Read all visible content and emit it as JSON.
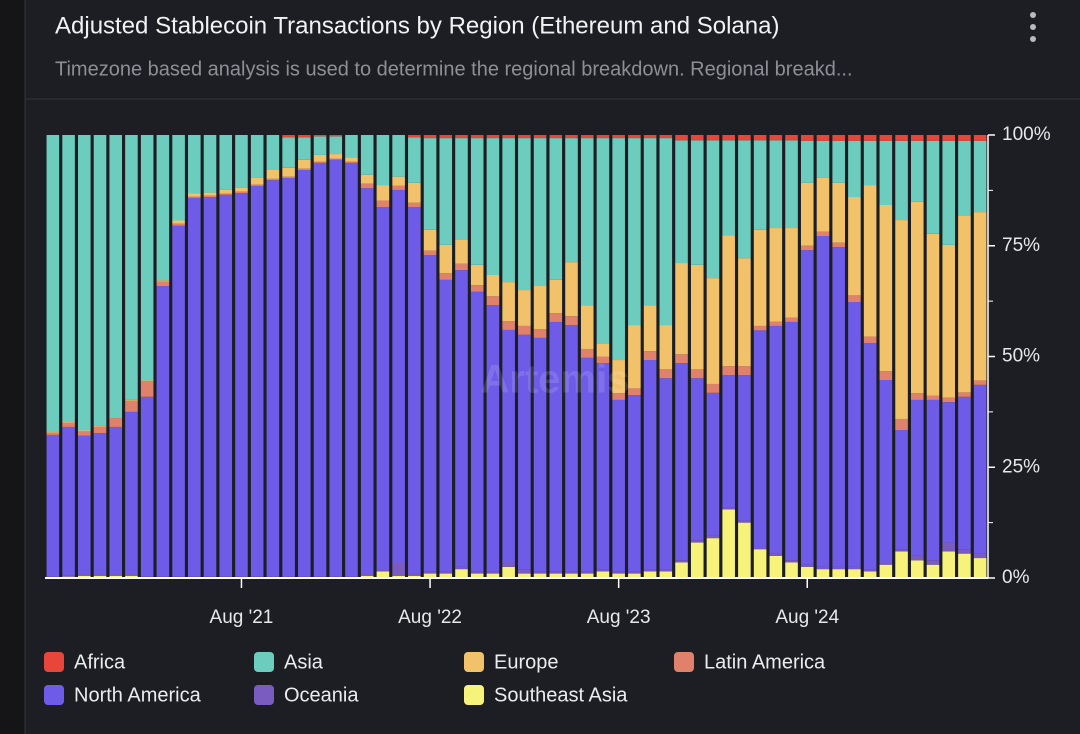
{
  "chart_data": {
    "type": "stacked_bar_percent",
    "title": "Adjusted Stablecoin Transactions by Region (Ethereum and Solana)",
    "subtitle": "Timezone based analysis is used to determine the regional breakdown. Regional breakd...",
    "watermark": "Artemis",
    "categories": [
      null,
      null,
      null,
      null,
      null,
      null,
      null,
      null,
      null,
      null,
      null,
      null,
      "Aug '21",
      null,
      null,
      null,
      null,
      null,
      null,
      null,
      null,
      null,
      null,
      null,
      "Aug '22",
      null,
      null,
      null,
      null,
      null,
      null,
      null,
      null,
      null,
      null,
      null,
      "Aug '23",
      null,
      null,
      null,
      null,
      null,
      null,
      null,
      null,
      null,
      null,
      null,
      "Aug '24",
      null,
      null,
      null,
      null,
      null,
      null,
      null,
      null,
      null,
      null,
      null
    ],
    "ylim": [
      0,
      100
    ],
    "yticks": [
      {
        "value": 0,
        "label": "0%"
      },
      {
        "value": 25,
        "label": "25%"
      },
      {
        "value": 50,
        "label": "50%"
      },
      {
        "value": 75,
        "label": "75%"
      },
      {
        "value": 100,
        "label": "100%"
      }
    ],
    "grid": false,
    "legend": "bottom",
    "series": [
      {
        "name": "Africa",
        "color": "#e8463a",
        "values": [
          0,
          0,
          0,
          0,
          0,
          0,
          0,
          0,
          0,
          0,
          0,
          0,
          0,
          0,
          0,
          0.5,
          0.5,
          0.3,
          0.3,
          0,
          0,
          0,
          0,
          0.5,
          0.7,
          0.7,
          0.7,
          0.7,
          0.7,
          0.7,
          0.7,
          0.7,
          0.7,
          0.7,
          0.7,
          0.7,
          0.7,
          0.7,
          0.7,
          0.7,
          1.2,
          1.2,
          1.2,
          1.2,
          1.2,
          1.2,
          1.2,
          1.2,
          1.3,
          1.3,
          1.3,
          1.3,
          1.3,
          1.3,
          1.3,
          1.3,
          1.3,
          1.3,
          1.3,
          1.3
        ]
      },
      {
        "name": "Asia",
        "color": "#6ccdbf",
        "values": [
          66.9,
          64.6,
          66.7,
          65.6,
          63.7,
          59.8,
          55.4,
          32.8,
          19.3,
          13.2,
          13.0,
          12.4,
          11.8,
          9.7,
          7.9,
          6.9,
          5.1,
          4.2,
          4.0,
          5.0,
          9.0,
          11.3,
          9.4,
          10.3,
          20.7,
          24.1,
          23.0,
          28.6,
          30.9,
          32.5,
          34.3,
          33.2,
          32.0,
          28.0,
          37.7,
          46.3,
          50.1,
          42.2,
          37.7,
          42.2,
          27.7,
          28.1,
          31.1,
          21.4,
          26.6,
          20.2,
          19.8,
          19.8,
          9.5,
          8.4,
          9.5,
          12.7,
          10.0,
          14.5,
          17.9,
          13.8,
          21.0,
          23.5,
          16.8,
          16.1
        ]
      },
      {
        "name": "Europe",
        "color": "#f2c26b",
        "values": [
          0.3,
          0.3,
          0.2,
          0.2,
          0.2,
          0.2,
          0.2,
          0.3,
          0.7,
          0.7,
          0.7,
          0.8,
          1,
          1.5,
          2,
          2,
          2,
          1.5,
          1,
          1,
          2,
          3.5,
          2,
          4.5,
          4.7,
          6.4,
          5.3,
          4.6,
          4.8,
          8.8,
          8.1,
          9.9,
          7.5,
          12.2,
          9.9,
          3,
          7.5,
          14.3,
          10.4,
          10,
          20.6,
          23.6,
          23.9,
          29.6,
          24.4,
          21.7,
          21.1,
          20.2,
          14.2,
          12.1,
          13.5,
          22.2,
          34.2,
          37.5,
          44.9,
          43.2,
          36.5,
          34.5,
          40,
          38
        ]
      },
      {
        "name": "Latin America",
        "color": "#e0826b",
        "values": [
          0.5,
          1,
          1,
          1.5,
          2,
          2.5,
          3.5,
          1,
          0.5,
          0.3,
          0.3,
          0.3,
          0.3,
          0.3,
          0.3,
          0.3,
          0.3,
          0.3,
          0.3,
          0.3,
          1,
          1.5,
          1,
          1,
          1,
          1.5,
          1.5,
          1.5,
          2,
          2,
          2,
          2,
          2,
          2,
          2,
          1.5,
          1.5,
          1.5,
          2,
          2,
          2,
          2,
          2,
          2,
          2,
          1,
          1,
          1,
          1,
          1,
          1,
          1.5,
          1.5,
          2,
          2.5,
          1.5,
          1,
          1,
          1,
          1
        ]
      },
      {
        "name": "North America",
        "color": "#6e5ce8",
        "values": [
          32.0,
          33.5,
          31.3,
          31.9,
          33.3,
          36.7,
          40.6,
          65.6,
          79.2,
          85.5,
          85.7,
          86.2,
          86.6,
          88.2,
          89.5,
          90.0,
          91.8,
          93.4,
          94.1,
          93.4,
          87.2,
          81.9,
          84.1,
          82.7,
          71.4,
          65.8,
          67.0,
          63.1,
          60.1,
          52.5,
          52.9,
          52.7,
          56.3,
          55.6,
          48.2,
          46.5,
          38.7,
          39.8,
          47.2,
          43.1,
          44.5,
          36.6,
          32.3,
          29.8,
          32.8,
          48.9,
          51.4,
          53.8,
          71.0,
          74.7,
          72.2,
          59.8,
          51.0,
          41.2,
          26.9,
          35.2,
          36.2,
          31.7,
          34.4,
          38.1
        ]
      },
      {
        "name": "Oceania",
        "color": "#7a5cc0",
        "values": [
          0.3,
          0.3,
          0.3,
          0.3,
          0.3,
          0.3,
          0.3,
          0.3,
          0.3,
          0.3,
          0.3,
          0.3,
          0.3,
          0.3,
          0.3,
          0.3,
          0.3,
          0.3,
          0.3,
          0.3,
          0.3,
          0.3,
          3,
          0.5,
          0.5,
          0.5,
          0.5,
          0.5,
          0.5,
          1,
          1,
          0.5,
          0.5,
          0.5,
          0.5,
          0.5,
          0.5,
          0.5,
          0.5,
          0.5,
          0.5,
          0.5,
          0.5,
          0.5,
          0.5,
          0.5,
          0.5,
          0.5,
          0.5,
          0.5,
          0.5,
          0.5,
          0.5,
          0.5,
          0.5,
          1,
          1,
          2,
          1,
          1
        ]
      },
      {
        "name": "Southeast Asia",
        "color": "#f7f27a",
        "values": [
          0,
          0.3,
          0.5,
          0.5,
          0.5,
          0.5,
          0,
          0,
          0,
          0,
          0,
          0,
          0,
          0,
          0,
          0,
          0,
          0,
          0,
          0,
          0.5,
          1.5,
          0.5,
          0.5,
          1,
          1,
          2,
          1,
          1,
          2.5,
          1,
          1,
          1,
          1,
          1,
          1.5,
          1,
          1,
          1.5,
          1.5,
          3.5,
          8,
          9,
          15.5,
          12.5,
          6.5,
          5,
          3.5,
          2.5,
          2,
          2,
          2,
          1.5,
          3,
          6,
          4,
          3,
          6,
          5.5,
          4.5
        ]
      }
    ]
  }
}
